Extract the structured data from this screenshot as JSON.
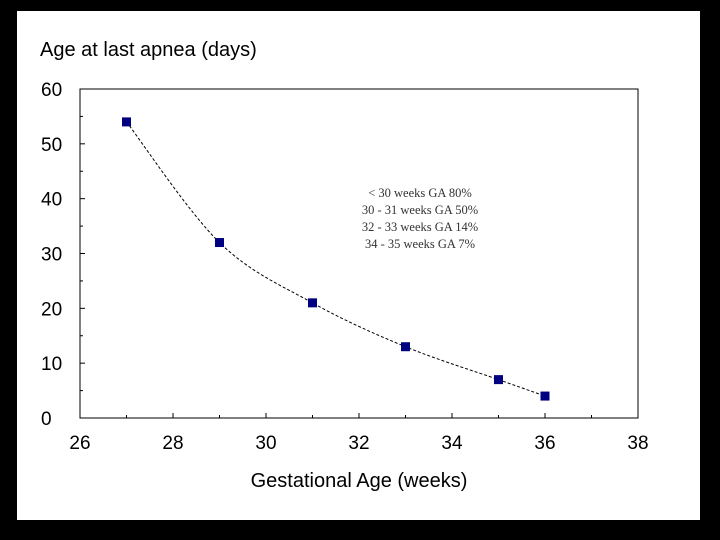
{
  "chart_data": {
    "type": "line",
    "title": "Age at last apnea (days)",
    "xlabel": "Gestational Age (weeks)",
    "ylabel": "",
    "xlim": [
      26,
      38
    ],
    "ylim": [
      0,
      60
    ],
    "x_ticks": [
      26,
      28,
      30,
      32,
      34,
      36,
      38
    ],
    "y_ticks": [
      0,
      10,
      20,
      30,
      40,
      50,
      60
    ],
    "x_tick_labels": [
      "26",
      "28",
      "30",
      "32",
      "34",
      "36",
      "38"
    ],
    "y_tick_labels": [
      "0",
      "10",
      "20",
      "30",
      "40",
      "50",
      "60"
    ],
    "grid": false,
    "series": [
      {
        "x": [
          27,
          29,
          31,
          33,
          35,
          36
        ],
        "y": [
          54,
          32,
          21,
          13,
          7,
          4
        ],
        "color": "#000080",
        "marker": "square",
        "line_color": "#000000",
        "line_style": "dashed"
      }
    ],
    "annotations": [
      "< 30 weeks GA 80%",
      "30 - 31 weeks GA 50%",
      "32 - 33 weeks GA 14%",
      "34 - 35 weeks GA 7%"
    ]
  }
}
